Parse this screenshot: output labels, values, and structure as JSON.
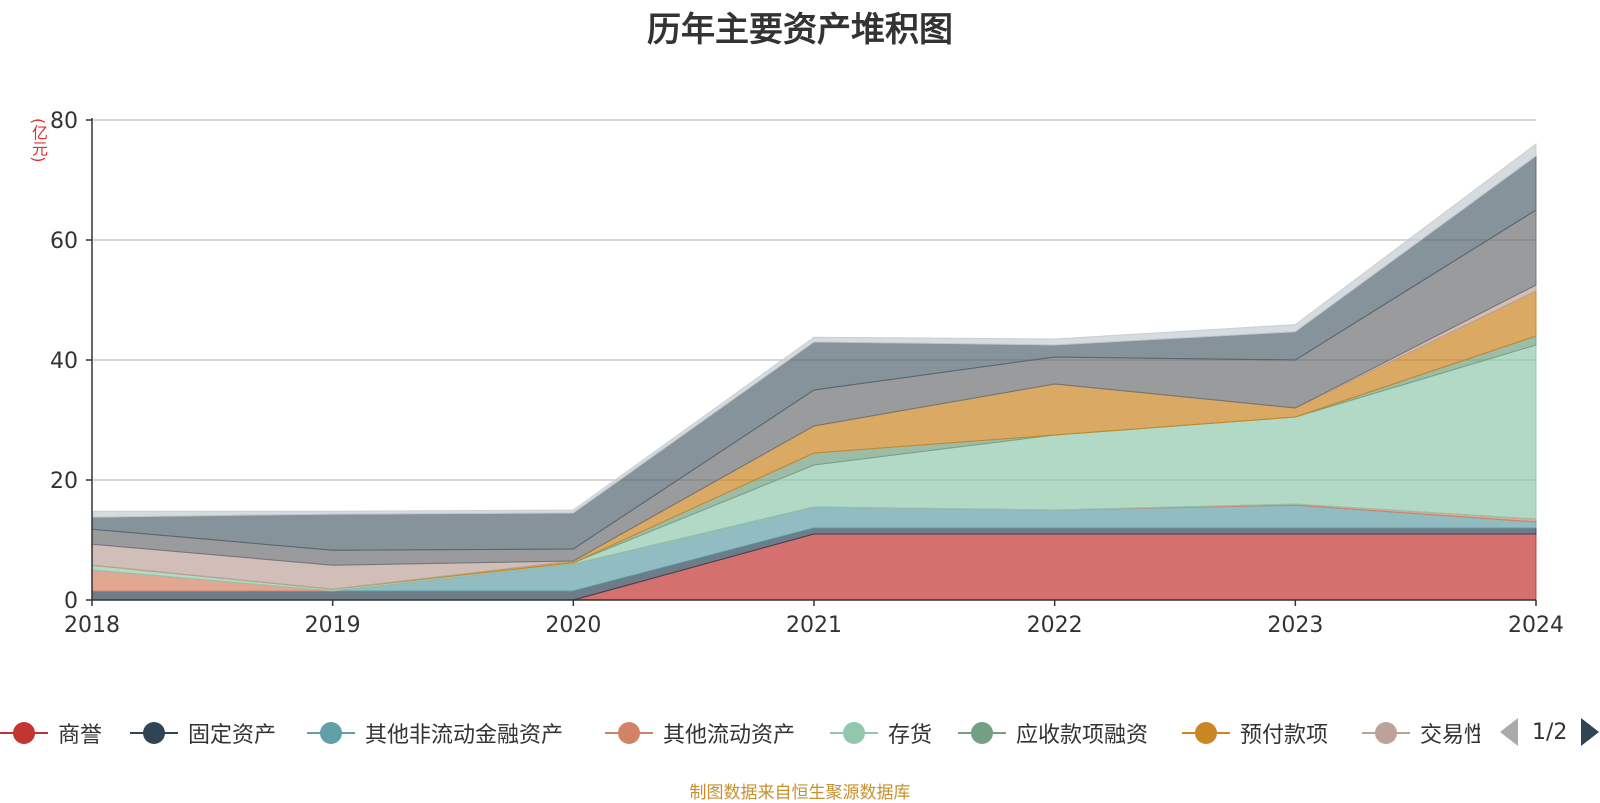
{
  "title": "历年主要资产堆积图",
  "unit": "(亿元)",
  "footer": "制图数据来自恒生聚源数据库",
  "pager": "1/2",
  "legend": [
    {
      "label": "商誉",
      "color": "#c23531"
    },
    {
      "label": "固定资产",
      "color": "#2f4554"
    },
    {
      "label": "其他非流动金融资产",
      "color": "#61a0a8"
    },
    {
      "label": "其他流动资产",
      "color": "#d48265"
    },
    {
      "label": "存货",
      "color": "#91c7ae"
    },
    {
      "label": "应收款项融资",
      "color": "#749f83"
    },
    {
      "label": "预付款项",
      "color": "#ca8622"
    },
    {
      "label": "交易性",
      "color": "#bda29a"
    }
  ],
  "chart_data": {
    "type": "area",
    "stacked": true,
    "x": [
      "2018",
      "2019",
      "2020",
      "2021",
      "2022",
      "2023",
      "2024"
    ],
    "ylim": [
      0,
      80
    ],
    "yticks": [
      0,
      20,
      40,
      60,
      80
    ],
    "grid": true,
    "series": [
      {
        "name": "商誉",
        "color": "#c23531",
        "values": [
          0,
          0,
          0,
          11.0,
          11.0,
          11.0,
          11.0
        ]
      },
      {
        "name": "固定资产",
        "color": "#2f4554",
        "values": [
          1.5,
          1.5,
          1.5,
          1.0,
          1.0,
          1.0,
          1.0
        ]
      },
      {
        "name": "其他非流动金融资产",
        "color": "#61a0a8",
        "values": [
          0,
          0,
          4.5,
          3.5,
          3.0,
          3.8,
          1.0
        ]
      },
      {
        "name": "其他流动资产",
        "color": "#d48265",
        "values": [
          3.5,
          0,
          0,
          0,
          0,
          0.2,
          0.5
        ]
      },
      {
        "name": "存货",
        "color": "#91c7ae",
        "values": [
          0.8,
          0.3,
          0.2,
          7.0,
          12.5,
          14.5,
          29.0
        ]
      },
      {
        "name": "应收款项融资",
        "color": "#749f83",
        "values": [
          0,
          0,
          0,
          2.0,
          0,
          0,
          1.5
        ]
      },
      {
        "name": "预付款项",
        "color": "#ca8622",
        "values": [
          0,
          0,
          0.3,
          4.5,
          8.5,
          1.5,
          7.5
        ]
      },
      {
        "name": "交易性",
        "color": "#bda29a",
        "values": [
          3.5,
          4.0,
          0,
          0,
          0,
          0,
          1.0
        ]
      },
      {
        "color": "#6e7074",
        "values": [
          2.5,
          2.5,
          2.0,
          6.0,
          4.5,
          8.0,
          12.5
        ]
      },
      {
        "color": "#546570",
        "values": [
          2.0,
          6.0,
          6.0,
          8.0,
          2.0,
          4.7,
          9.0
        ]
      },
      {
        "color": "#c4ccd3",
        "values": [
          1.0,
          0.5,
          0.5,
          0.8,
          1.0,
          1.2,
          2.0
        ]
      }
    ]
  }
}
